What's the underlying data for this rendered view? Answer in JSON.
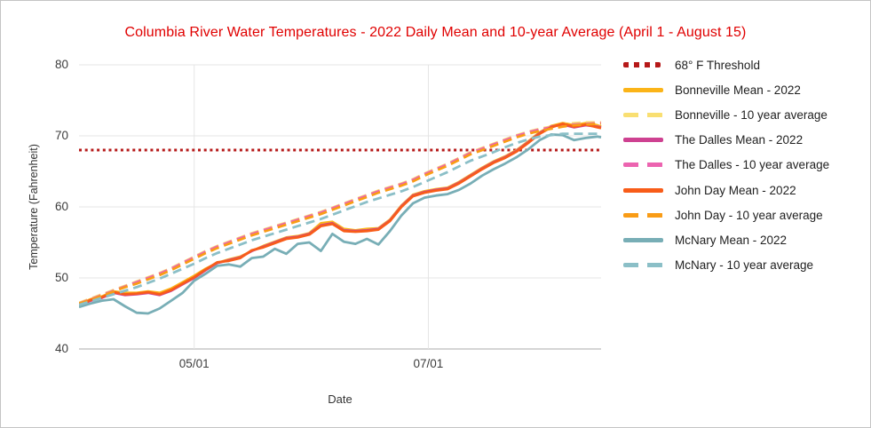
{
  "frame": {
    "background": "#ffffff",
    "border_color": "#c4c4c4"
  },
  "chart_data": {
    "type": "line",
    "title": "Columbia River Water Temperatures - 2022 Daily Mean and 10-year Average (April 1 - August 15)",
    "title_color": "#E00000",
    "xlabel": "Date",
    "ylabel": "Temperature (Fahrenheit)",
    "ylim": [
      40,
      80
    ],
    "yticks": [
      40,
      50,
      60,
      70,
      80
    ],
    "x_unit": "days since April 1",
    "xlim_days": [
      0,
      136
    ],
    "xticks": [
      {
        "day": 30,
        "label": "05/01"
      },
      {
        "day": 91,
        "label": "07/01"
      }
    ],
    "grid": true,
    "grid_color": "#e4e4e4",
    "axis_line_color": "#ababab",
    "legend_position": "right",
    "threshold": {
      "label": "68° F Threshold",
      "value": 68,
      "color": "#B61919",
      "style": "dotted"
    },
    "x_days": [
      0,
      3,
      6,
      9,
      12,
      15,
      18,
      21,
      24,
      27,
      30,
      33,
      36,
      39,
      42,
      45,
      48,
      51,
      54,
      57,
      60,
      63,
      66,
      69,
      72,
      75,
      78,
      81,
      84,
      87,
      90,
      93,
      96,
      99,
      102,
      105,
      108,
      111,
      114,
      117,
      120,
      123,
      126,
      129,
      132,
      135,
      136
    ],
    "series": [
      {
        "name": "Bonneville Mean - 2022",
        "color": "#FBB418",
        "style": "solid",
        "values": [
          46.3,
          47.0,
          47.4,
          48.1,
          47.9,
          47.9,
          48.1,
          47.9,
          48.5,
          49.4,
          50.3,
          51.3,
          52.1,
          52.6,
          53.0,
          53.8,
          54.5,
          55.1,
          55.7,
          55.9,
          56.3,
          57.7,
          57.9,
          56.9,
          56.7,
          56.9,
          57.0,
          58.2,
          60.2,
          61.7,
          62.2,
          62.5,
          62.7,
          63.5,
          64.5,
          65.5,
          66.4,
          67.1,
          68.0,
          69.2,
          70.5,
          71.4,
          71.8,
          71.5,
          71.8,
          71.5,
          71.3
        ]
      },
      {
        "name": "Bonneville - 10 year average",
        "color": "#F9DF72",
        "style": "dashed",
        "values": [
          46.5,
          47.1,
          47.7,
          48.3,
          48.9,
          49.5,
          50.1,
          50.7,
          51.4,
          52.2,
          53.0,
          53.8,
          54.5,
          55.1,
          55.7,
          56.3,
          56.8,
          57.3,
          57.8,
          58.3,
          58.8,
          59.3,
          59.9,
          60.5,
          61.1,
          61.7,
          62.3,
          62.8,
          63.3,
          63.9,
          64.7,
          65.4,
          66.1,
          66.9,
          67.7,
          68.3,
          68.9,
          69.5,
          70.1,
          70.6,
          71.0,
          71.3,
          71.6,
          71.8,
          71.9,
          71.9,
          71.9
        ]
      },
      {
        "name": "The Dalles Mean - 2022",
        "color": "#CE4191",
        "style": "solid",
        "values": [
          46.1,
          46.8,
          47.2,
          47.9,
          47.6,
          47.7,
          47.9,
          47.6,
          48.2,
          49.1,
          50.0,
          51.1,
          52.1,
          52.5,
          52.9,
          53.8,
          54.4,
          55.0,
          55.6,
          55.8,
          56.2,
          57.4,
          57.7,
          56.7,
          56.6,
          56.7,
          56.9,
          58.1,
          60.1,
          61.6,
          62.1,
          62.4,
          62.6,
          63.4,
          64.4,
          65.4,
          66.3,
          67.0,
          67.9,
          69.1,
          70.4,
          71.3,
          71.6,
          71.2,
          71.5,
          71.3,
          71.2
        ]
      },
      {
        "name": "The Dalles - 10 year average",
        "color": "#EC64B0",
        "style": "dashed",
        "values": [
          46.4,
          47.0,
          47.6,
          48.2,
          48.8,
          49.4,
          50.0,
          50.6,
          51.3,
          52.1,
          52.9,
          53.7,
          54.4,
          55.0,
          55.6,
          56.2,
          56.7,
          57.2,
          57.7,
          58.2,
          58.7,
          59.2,
          59.8,
          60.4,
          61.0,
          61.6,
          62.2,
          62.7,
          63.2,
          63.8,
          64.6,
          65.3,
          66.0,
          66.8,
          67.6,
          68.2,
          68.8,
          69.4,
          70.0,
          70.5,
          70.9,
          71.2,
          71.5,
          71.6,
          71.7,
          71.8,
          71.8
        ]
      },
      {
        "name": "John Day Mean - 2022",
        "color": "#F85C19",
        "style": "solid",
        "values": [
          46.2,
          46.9,
          47.3,
          48.0,
          47.7,
          47.8,
          48.0,
          47.7,
          48.3,
          49.2,
          50.1,
          51.2,
          52.2,
          52.4,
          52.8,
          53.9,
          54.3,
          54.9,
          55.5,
          55.7,
          56.1,
          57.3,
          57.6,
          56.6,
          56.5,
          56.6,
          56.8,
          58.0,
          60.0,
          61.5,
          62.0,
          62.3,
          62.5,
          63.3,
          64.3,
          65.3,
          66.2,
          66.9,
          67.8,
          69.0,
          70.3,
          71.2,
          71.7,
          71.3,
          71.6,
          71.2,
          71.1
        ]
      },
      {
        "name": "John Day - 10 year average",
        "color": "#F99C16",
        "style": "dashed",
        "values": [
          46.4,
          46.9,
          47.5,
          48.1,
          48.7,
          49.2,
          49.8,
          50.4,
          51.1,
          51.9,
          52.7,
          53.5,
          54.2,
          54.8,
          55.4,
          56.0,
          56.5,
          57.0,
          57.5,
          58.0,
          58.5,
          59.0,
          59.6,
          60.2,
          60.8,
          61.4,
          62.0,
          62.5,
          63.0,
          63.6,
          64.4,
          65.1,
          65.8,
          66.6,
          67.4,
          68.0,
          68.6,
          69.2,
          69.8,
          70.3,
          70.7,
          71.0,
          71.3,
          71.5,
          71.6,
          71.7,
          71.7
        ]
      },
      {
        "name": "McNary Mean - 2022",
        "color": "#78AEB6",
        "style": "solid",
        "values": [
          45.9,
          46.4,
          46.8,
          47.0,
          46.0,
          45.1,
          45.0,
          45.7,
          46.8,
          47.9,
          49.6,
          50.6,
          51.7,
          51.9,
          51.6,
          52.8,
          53.0,
          54.1,
          53.4,
          54.8,
          55.0,
          53.8,
          56.2,
          55.1,
          54.8,
          55.5,
          54.7,
          56.6,
          58.8,
          60.5,
          61.3,
          61.6,
          61.8,
          62.4,
          63.3,
          64.4,
          65.3,
          66.1,
          67.0,
          68.1,
          69.4,
          70.2,
          70.1,
          69.4,
          69.7,
          69.9,
          69.8
        ]
      },
      {
        "name": "McNary - 10 year average",
        "color": "#8BBFC7",
        "style": "dashed",
        "values": [
          46.2,
          46.7,
          47.2,
          47.7,
          48.2,
          48.7,
          49.3,
          49.9,
          50.6,
          51.3,
          52.0,
          52.8,
          53.5,
          54.1,
          54.7,
          55.3,
          55.8,
          56.3,
          56.8,
          57.3,
          57.8,
          58.3,
          58.9,
          59.5,
          60.1,
          60.7,
          61.2,
          61.7,
          62.2,
          62.8,
          63.5,
          64.2,
          64.9,
          65.7,
          66.5,
          67.1,
          67.7,
          68.4,
          69.0,
          69.5,
          69.9,
          70.1,
          70.3,
          70.3,
          70.3,
          70.3,
          70.3
        ]
      }
    ]
  }
}
